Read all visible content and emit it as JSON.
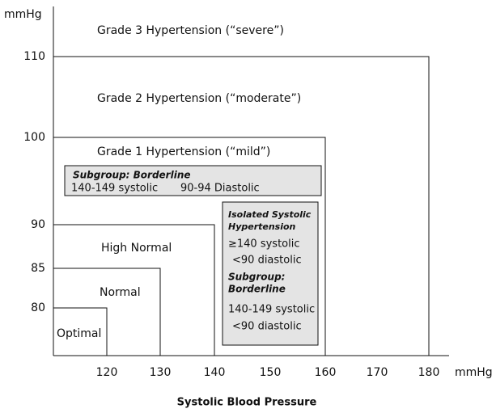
{
  "axes": {
    "y_unit": "mmHg",
    "x_unit": "mmHg",
    "title": "Systolic Blood Pressure",
    "yticks": [
      "110",
      "100",
      "90",
      "85",
      "80"
    ],
    "xticks": [
      "120",
      "130",
      "140",
      "150",
      "160",
      "170",
      "180"
    ]
  },
  "regions": [
    {
      "label": "Grade 3 Hypertension (“severe”)"
    },
    {
      "label": "Grade 2 Hypertension (“moderate”)"
    },
    {
      "label": "Grade 1 Hypertension (“mild”)"
    },
    {
      "label": "High Normal"
    },
    {
      "label": "Normal"
    },
    {
      "label": "Optimal"
    }
  ],
  "subgroup": {
    "title": "Subgroup: Borderline",
    "systolic": "140-149 systolic",
    "diastolic": "90-94 Diastolic"
  },
  "isolated": {
    "title": [
      "Isolated Systolic",
      "Hypertension"
    ],
    "lines": [
      "≥140 systolic",
      "<90 diastolic"
    ],
    "subtitle": [
      "Subgroup:",
      "Borderline"
    ],
    "sublines": [
      "140-149 systolic",
      "<90 diastolic"
    ]
  }
}
